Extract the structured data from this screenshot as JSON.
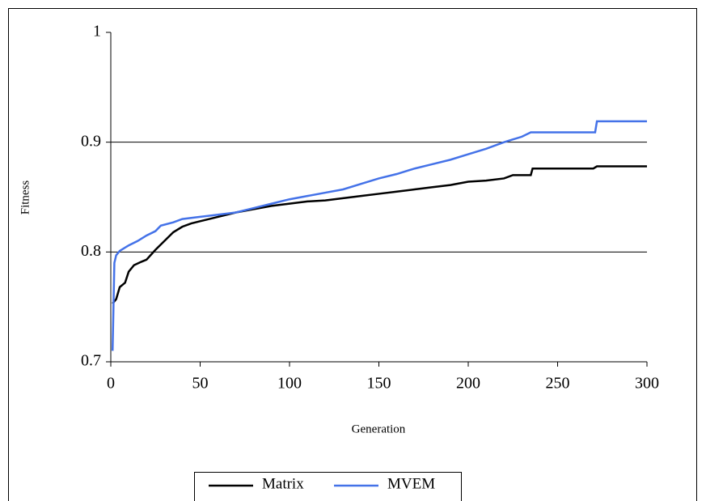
{
  "chart_data": {
    "type": "line",
    "x_label": "Generation",
    "y_label": "Fitness",
    "xlim": [
      0,
      300
    ],
    "xticks": [
      0,
      50,
      100,
      150,
      200,
      250,
      300
    ],
    "ylim": [
      0.7,
      1
    ],
    "yticks": [
      0.7,
      0.8,
      0.9,
      1
    ],
    "grid": true,
    "legend": "bottom",
    "series": [
      {
        "name": "Matrix",
        "color": "#000000",
        "x": [
          1,
          3,
          5,
          8,
          10,
          13,
          17,
          20,
          25,
          30,
          35,
          40,
          45,
          50,
          60,
          70,
          80,
          90,
          100,
          110,
          120,
          130,
          140,
          150,
          160,
          170,
          180,
          190,
          200,
          210,
          220,
          225,
          235,
          236,
          270,
          272,
          300
        ],
        "values": [
          0.753,
          0.757,
          0.768,
          0.772,
          0.782,
          0.788,
          0.791,
          0.793,
          0.802,
          0.81,
          0.818,
          0.823,
          0.826,
          0.828,
          0.832,
          0.836,
          0.839,
          0.842,
          0.844,
          0.846,
          0.847,
          0.849,
          0.851,
          0.853,
          0.855,
          0.857,
          0.859,
          0.861,
          0.864,
          0.865,
          0.867,
          0.87,
          0.87,
          0.876,
          0.876,
          0.878,
          0.878
        ]
      },
      {
        "name": "MVEM",
        "color": "#4472e8",
        "x": [
          1,
          2,
          3,
          5,
          10,
          15,
          20,
          25,
          28,
          35,
          40,
          50,
          60,
          70,
          80,
          90,
          100,
          110,
          120,
          130,
          140,
          150,
          160,
          170,
          180,
          190,
          200,
          210,
          220,
          230,
          235,
          271,
          272,
          300
        ],
        "values": [
          0.71,
          0.79,
          0.797,
          0.801,
          0.806,
          0.81,
          0.815,
          0.819,
          0.824,
          0.827,
          0.83,
          0.832,
          0.834,
          0.836,
          0.84,
          0.844,
          0.848,
          0.851,
          0.854,
          0.857,
          0.862,
          0.867,
          0.871,
          0.876,
          0.88,
          0.884,
          0.889,
          0.894,
          0.9,
          0.905,
          0.909,
          0.909,
          0.919,
          0.919
        ]
      }
    ]
  }
}
